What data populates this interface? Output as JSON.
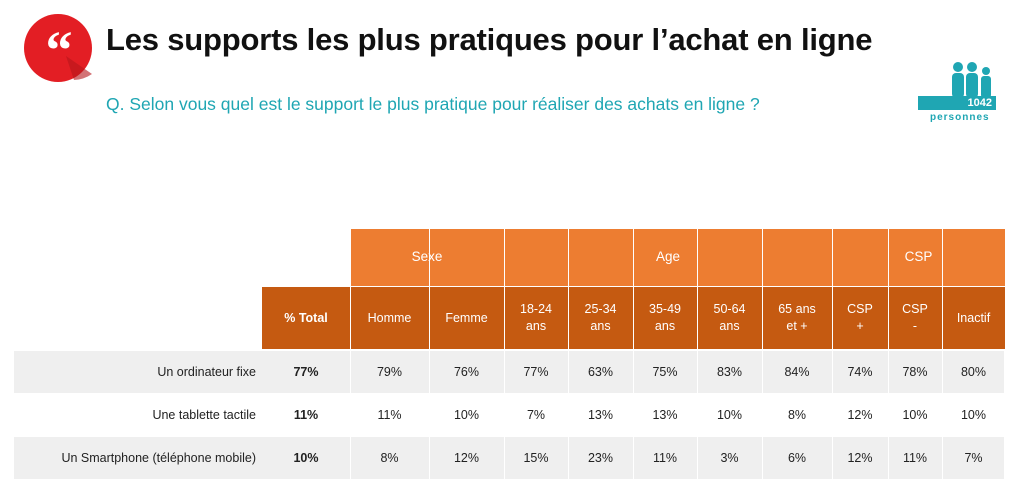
{
  "header": {
    "title": "Les supports les plus pratiques pour l’achat en ligne",
    "question": "Q. Selon vous quel est le support le plus pratique pour réaliser des achats en ligne ?",
    "sample_count": "1042",
    "sample_unit": "personnes",
    "quote_glyph": "“",
    "accent_color": "#e31e24",
    "teal_color": "#1fa6b3"
  },
  "chart_data": {
    "type": "table",
    "groups": [
      {
        "label": "Sexe",
        "span": 2
      },
      {
        "label": "Age",
        "span": 5
      },
      {
        "label": "CSP",
        "span": 3
      }
    ],
    "columns": [
      "% Total",
      "Homme",
      "Femme",
      "18-24 ans",
      "25-34 ans",
      "35-49 ans",
      "50-64 ans",
      "65 ans et +",
      "CSP +",
      "CSP -",
      "Inactif"
    ],
    "rows": [
      {
        "label": "Un ordinateur fixe",
        "values": [
          "77%",
          "79%",
          "76%",
          "77%",
          "63%",
          "75%",
          "83%",
          "84%",
          "74%",
          "78%",
          "80%"
        ]
      },
      {
        "label": "Une tablette tactile",
        "values": [
          "11%",
          "11%",
          "10%",
          "7%",
          "13%",
          "13%",
          "10%",
          "8%",
          "12%",
          "10%",
          "10%"
        ]
      },
      {
        "label": "Un Smartphone (téléphone mobile)",
        "values": [
          "10%",
          "8%",
          "12%",
          "15%",
          "23%",
          "11%",
          "3%",
          "6%",
          "12%",
          "11%",
          "7%"
        ]
      }
    ],
    "colors": {
      "group_header": "#ed7d31",
      "column_header": "#c55a11",
      "row_shade": "#efefef"
    }
  }
}
